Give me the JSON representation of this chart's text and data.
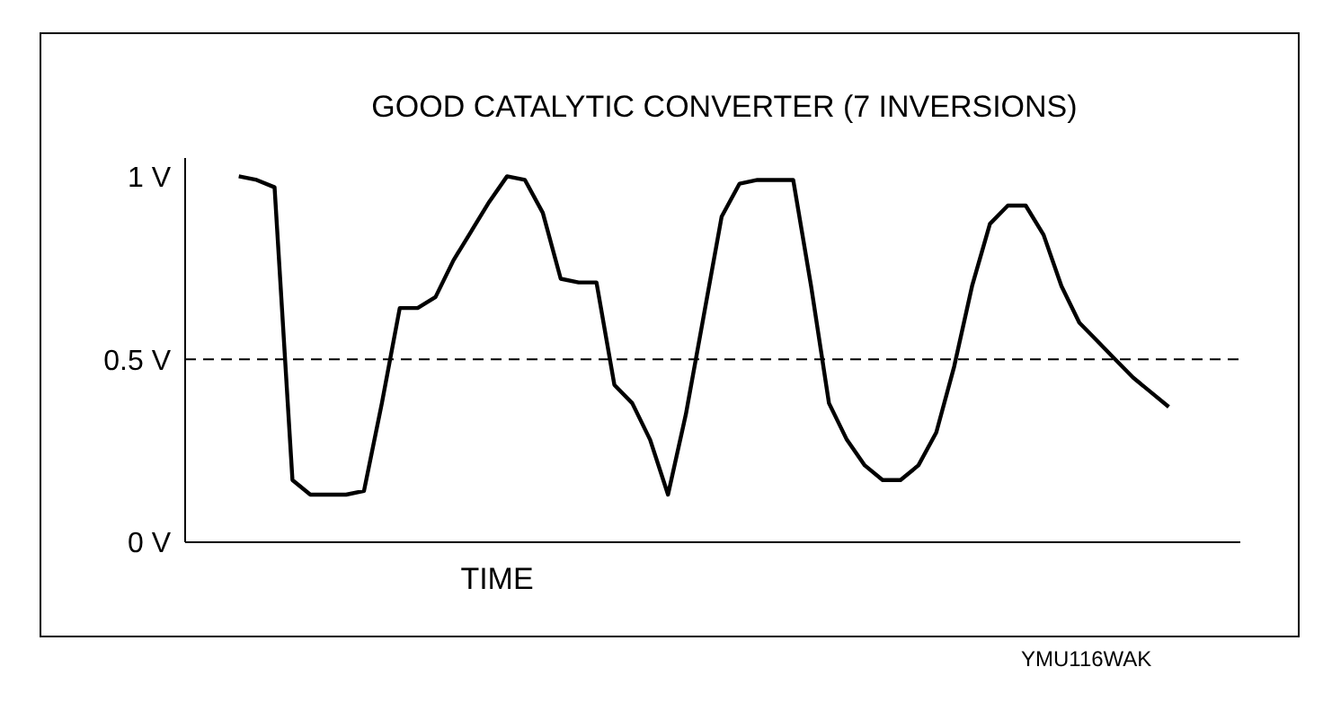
{
  "chart_data": {
    "type": "line",
    "title": "GOOD CATALYTIC CONVERTER (7 INVERSIONS)",
    "xlabel": "TIME",
    "categories": [
      null,
      null,
      null,
      null,
      null,
      null,
      null,
      null,
      null,
      null,
      null,
      null,
      null,
      null,
      null,
      null,
      null,
      null,
      null,
      null,
      null,
      null,
      null,
      null,
      null,
      null,
      null,
      null,
      null,
      null,
      null,
      null,
      null,
      null,
      null,
      null,
      null,
      null,
      null,
      null,
      null,
      null,
      null,
      null,
      null,
      null,
      null,
      null,
      null,
      null,
      null,
      null,
      null,
      null,
      null,
      null,
      null,
      null,
      null,
      null
    ],
    "values": [
      null,
      null,
      null,
      1.0,
      0.99,
      0.97,
      0.17,
      0.13,
      0.13,
      0.13,
      0.14,
      0.38,
      0.64,
      0.64,
      0.67,
      0.77,
      0.85,
      0.93,
      1.0,
      0.99,
      0.9,
      0.72,
      0.71,
      0.71,
      0.43,
      0.38,
      0.28,
      0.13,
      0.35,
      0.62,
      0.89,
      0.98,
      0.99,
      0.99,
      0.99,
      0.7,
      0.38,
      0.28,
      0.21,
      0.17,
      0.17,
      0.21,
      0.3,
      0.48,
      0.7,
      0.87,
      0.92,
      0.92,
      0.84,
      0.7,
      0.6,
      0.55,
      0.5,
      0.45,
      0.41,
      0.37,
      null,
      null,
      null,
      null
    ],
    "color": "#000000",
    "marker": "none",
    "line_style": "solid",
    "tick_labels": "y",
    "ylim": [
      0,
      1.05
    ],
    "yticks": [
      {
        "value": 0,
        "label": "0 V"
      },
      {
        "value": 0.5,
        "label": "0.5 V"
      },
      {
        "value": 1,
        "label": "1 V"
      }
    ],
    "ref_lines": [
      {
        "axis": "y",
        "value": 0.5,
        "label": null,
        "color": "#000000",
        "line_style": "dashed"
      }
    ],
    "annotations": [
      "YMU116WAK"
    ]
  }
}
